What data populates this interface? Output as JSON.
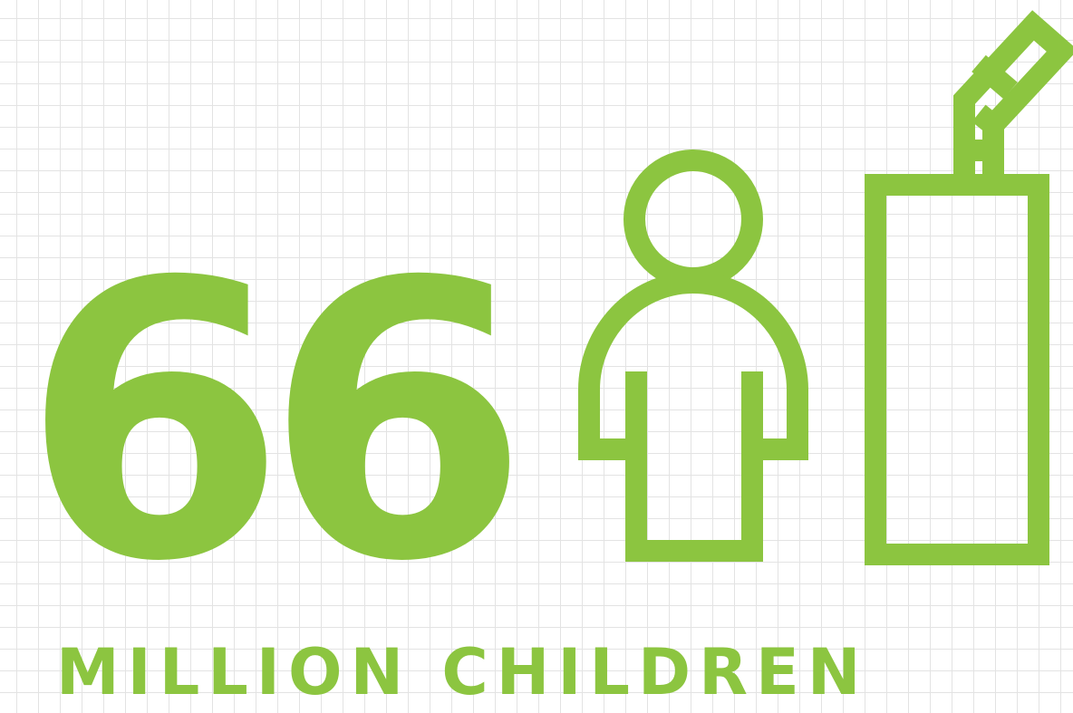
{
  "statistic": {
    "number": "66",
    "label": "MILLION CHILDREN"
  },
  "icons": {
    "child": "child-figure-icon",
    "drink": "milk-carton-with-straw-icon"
  },
  "colors": {
    "accent": "#8cc540",
    "background": "#ffffff",
    "grid": "#e3e3e3"
  }
}
